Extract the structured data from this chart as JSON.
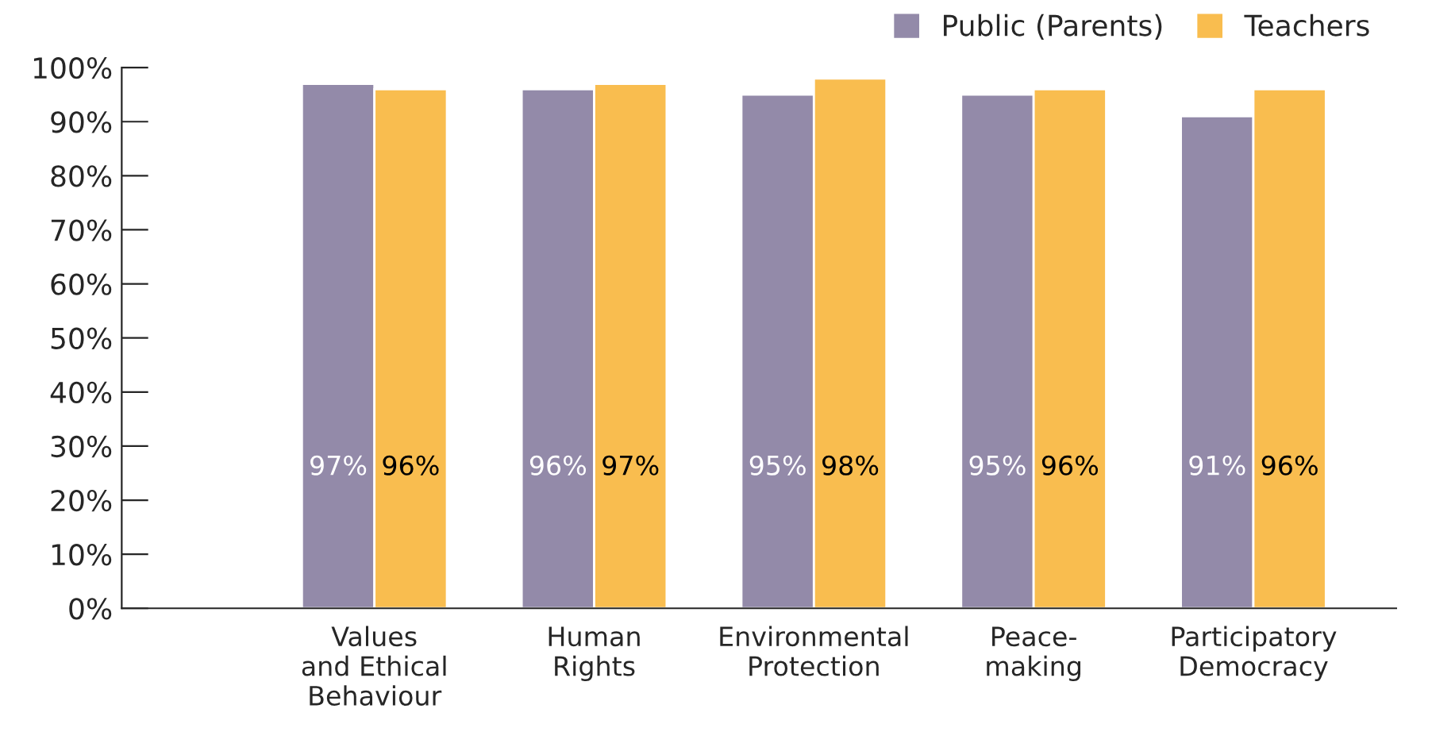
{
  "chart_data": {
    "type": "bar",
    "categories": [
      "Values\nand Ethical\nBehaviour",
      "Human\nRights",
      "Environmental\nProtection",
      "Peace-\nmaking",
      "Participatory\nDemocracy"
    ],
    "series": [
      {
        "name": "Public (Parents)",
        "color": "#938aa9",
        "values": [
          97,
          96,
          95,
          95,
          91
        ],
        "value_labels": [
          "97%",
          "96%",
          "95%",
          "95%",
          "91%"
        ]
      },
      {
        "name": "Teachers",
        "color": "#f9bd4f",
        "values": [
          96,
          97,
          98,
          96,
          96
        ],
        "value_labels": [
          "96%",
          "97%",
          "98%",
          "96%",
          "96%"
        ]
      }
    ],
    "ylim": [
      0,
      100
    ],
    "yticks": [
      {
        "value": 0,
        "label": "0%"
      },
      {
        "value": 10,
        "label": "10%"
      },
      {
        "value": 20,
        "label": "20%"
      },
      {
        "value": 30,
        "label": "30%"
      },
      {
        "value": 40,
        "label": "40%"
      },
      {
        "value": 50,
        "label": "50%"
      },
      {
        "value": 60,
        "label": "60%"
      },
      {
        "value": 70,
        "label": "70%"
      },
      {
        "value": 80,
        "label": "80%"
      },
      {
        "value": 90,
        "label": "90%"
      },
      {
        "value": 100,
        "label": "100%"
      }
    ],
    "grid": false,
    "legend": "top right"
  }
}
